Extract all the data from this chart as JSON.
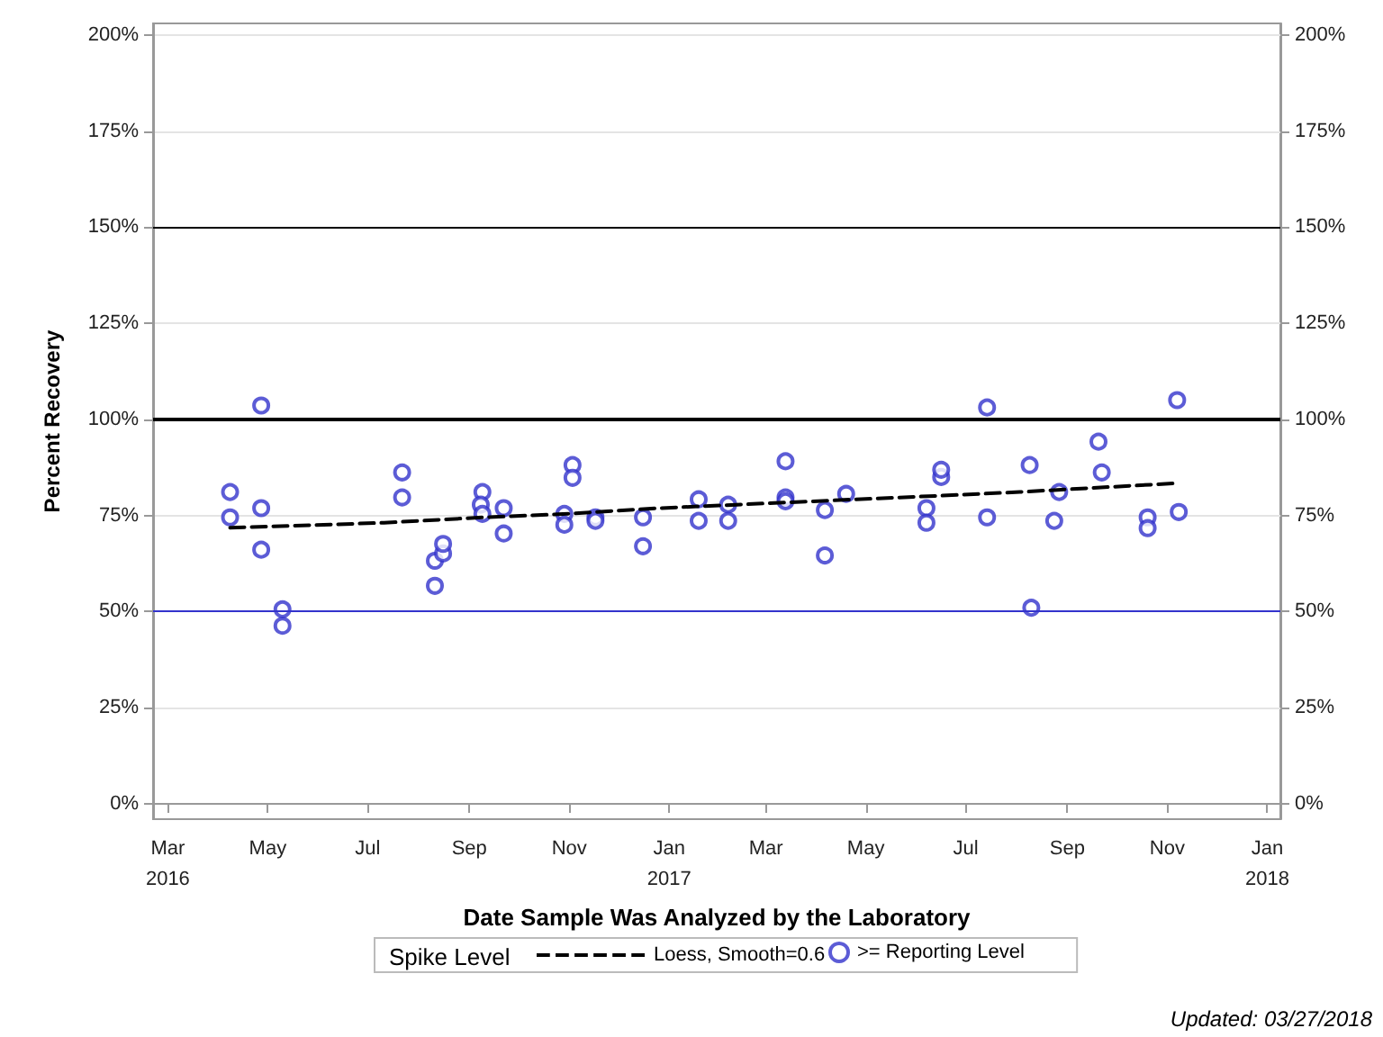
{
  "chart_data": {
    "type": "scatter",
    "xlabel": "Date Sample Was Analyzed by the Laboratory",
    "ylabel": "Percent Recovery",
    "legend_title": "Spike Level",
    "legend": "bottom",
    "grid": "y",
    "xlim": [
      "2016-02-21",
      "2018-01-09"
    ],
    "xticks": [
      {
        "value": "2016-03-01",
        "label": "Mar\n2016"
      },
      {
        "value": "2016-05-01",
        "label": "May"
      },
      {
        "value": "2016-07-01",
        "label": "Jul"
      },
      {
        "value": "2016-09-01",
        "label": "Sep"
      },
      {
        "value": "2016-11-01",
        "label": "Nov"
      },
      {
        "value": "2017-01-01",
        "label": "Jan\n2017"
      },
      {
        "value": "2017-03-01",
        "label": "Mar"
      },
      {
        "value": "2017-05-01",
        "label": "May"
      },
      {
        "value": "2017-07-01",
        "label": "Jul"
      },
      {
        "value": "2017-09-01",
        "label": "Sep"
      },
      {
        "value": "2017-11-01",
        "label": "Nov"
      },
      {
        "value": "2018-01-01",
        "label": "Jan\n2018"
      }
    ],
    "ylim": [
      -4,
      203
    ],
    "yticks": [
      {
        "value": 0,
        "label": "0%"
      },
      {
        "value": 25,
        "label": "25%"
      },
      {
        "value": 50,
        "label": "50%"
      },
      {
        "value": 75,
        "label": "75%"
      },
      {
        "value": 100,
        "label": "100%"
      },
      {
        "value": 125,
        "label": "125%"
      },
      {
        "value": 150,
        "label": "150%"
      },
      {
        "value": 175,
        "label": "175%"
      },
      {
        "value": 200,
        "label": "200%"
      }
    ],
    "y2lim": [
      -4,
      203
    ],
    "y2ticks": [
      {
        "value": 0,
        "label": "0%"
      },
      {
        "value": 25,
        "label": "25%"
      },
      {
        "value": 50,
        "label": "50%"
      },
      {
        "value": 75,
        "label": "75%"
      },
      {
        "value": 100,
        "label": "100%"
      },
      {
        "value": 125,
        "label": "125%"
      },
      {
        "value": 150,
        "label": "150%"
      },
      {
        "value": 175,
        "label": "175%"
      },
      {
        "value": 200,
        "label": "200%"
      }
    ],
    "ref_lines": [
      {
        "axis": "y",
        "value": 150,
        "label": null,
        "color": "#000000",
        "line_style": "solid"
      },
      {
        "axis": "y",
        "value": 100,
        "label": null,
        "color": "#000000",
        "line_style": "solid"
      },
      {
        "axis": "y",
        "value": 50,
        "label": null,
        "color": "#3333cc",
        "line_style": "solid"
      }
    ],
    "series": [
      {
        "name": "Loess, Smooth=0.6",
        "type": "line",
        "color": "#000000",
        "line_style": "dashed",
        "marker": "none",
        "x": [
          "2016-04-08",
          "2016-07-11",
          "2016-09-09",
          "2016-10-25",
          "2016-12-26",
          "2017-03-09",
          "2017-06-13",
          "2017-08-03",
          "2017-11-07"
        ],
        "values": [
          71.8,
          73.1,
          74.5,
          75.3,
          76.9,
          78.3,
          80.1,
          81.1,
          83.4
        ]
      },
      {
        "name": ">= Reporting Level",
        "color": "#3333cc",
        "marker": "circle",
        "x": [
          "2016-04-08",
          "2016-04-08",
          "2016-04-27",
          "2016-04-27",
          "2016-04-27",
          "2016-05-10",
          "2016-05-10",
          "2016-07-22",
          "2016-07-22",
          "2016-08-11",
          "2016-08-11",
          "2016-08-16",
          "2016-08-16",
          "2016-09-09",
          "2016-09-08",
          "2016-09-09",
          "2016-09-22",
          "2016-09-22",
          "2016-10-29",
          "2016-10-29",
          "2016-11-03",
          "2016-11-03",
          "2016-11-17",
          "2016-11-17",
          "2016-12-16",
          "2016-12-16",
          "2017-01-19",
          "2017-01-19",
          "2017-02-06",
          "2017-02-06",
          "2017-03-13",
          "2017-03-13",
          "2017-03-13",
          "2017-04-06",
          "2017-04-06",
          "2017-04-19",
          "2017-06-07",
          "2017-06-07",
          "2017-06-16",
          "2017-06-16",
          "2017-07-14",
          "2017-07-14",
          "2017-08-09",
          "2017-08-10",
          "2017-08-24",
          "2017-08-27",
          "2017-09-20",
          "2017-09-22",
          "2017-10-20",
          "2017-10-20",
          "2017-11-07",
          "2017-11-08"
        ],
        "values": [
          81.1,
          74.5,
          103.6,
          76.9,
          66.1,
          50.6,
          46.3,
          86.2,
          79.7,
          56.7,
          63.2,
          65.1,
          67.6,
          81.1,
          77.8,
          75.4,
          76.9,
          70.3,
          75.4,
          72.6,
          88.1,
          84.8,
          74.5,
          73.6,
          74.5,
          67.0,
          79.2,
          73.6,
          77.8,
          73.6,
          89.1,
          79.7,
          78.7,
          76.4,
          64.6,
          80.6,
          76.9,
          73.1,
          85.0,
          86.9,
          103.1,
          74.5,
          88.1,
          51.0,
          73.6,
          81.1,
          94.2,
          86.2,
          74.5,
          71.7,
          105.0,
          75.9
        ]
      }
    ],
    "annotations": [
      "Updated: 03/27/2018"
    ]
  }
}
